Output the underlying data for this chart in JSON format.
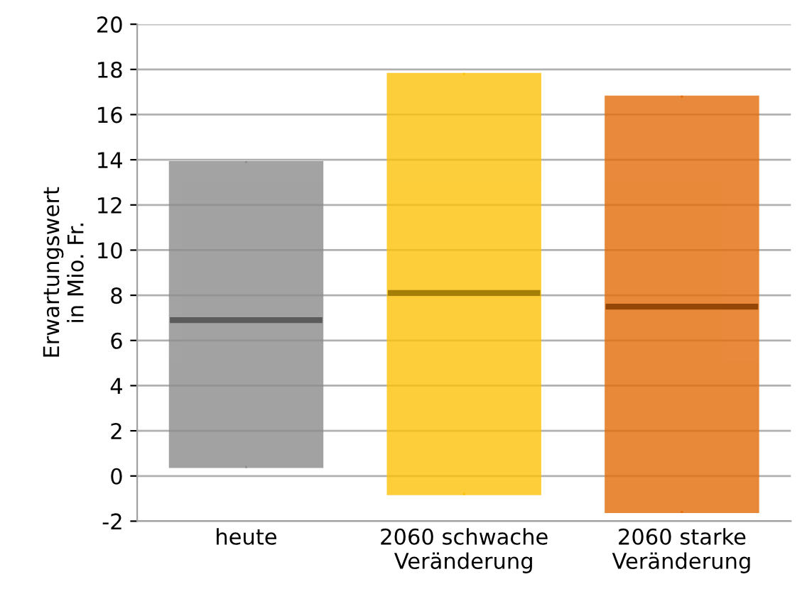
{
  "chart_data": {
    "type": "box",
    "ylabel": "Erwartungswert\nin Mio. Fr.",
    "categories": [
      "heute",
      "2060 schwache\nVeränderung",
      "2060 starke\nVeränderung"
    ],
    "boxes": [
      {
        "low": 0.4,
        "q1": 0.4,
        "median": 6.9,
        "q3": 13.9,
        "high": 13.9
      },
      {
        "low": -0.8,
        "q1": -0.8,
        "median": 8.1,
        "q3": 17.8,
        "high": 17.8
      },
      {
        "low": -1.6,
        "q1": -1.6,
        "median": 7.5,
        "q3": 16.8,
        "high": 16.8
      }
    ],
    "colors": [
      "#8c8c8c",
      "#fdc20a",
      "#e36c0a"
    ],
    "ylim": [
      -2,
      20
    ],
    "yticks": [
      -2,
      0,
      2,
      4,
      6,
      8,
      10,
      12,
      14,
      16,
      18,
      20
    ],
    "grid": "y"
  }
}
